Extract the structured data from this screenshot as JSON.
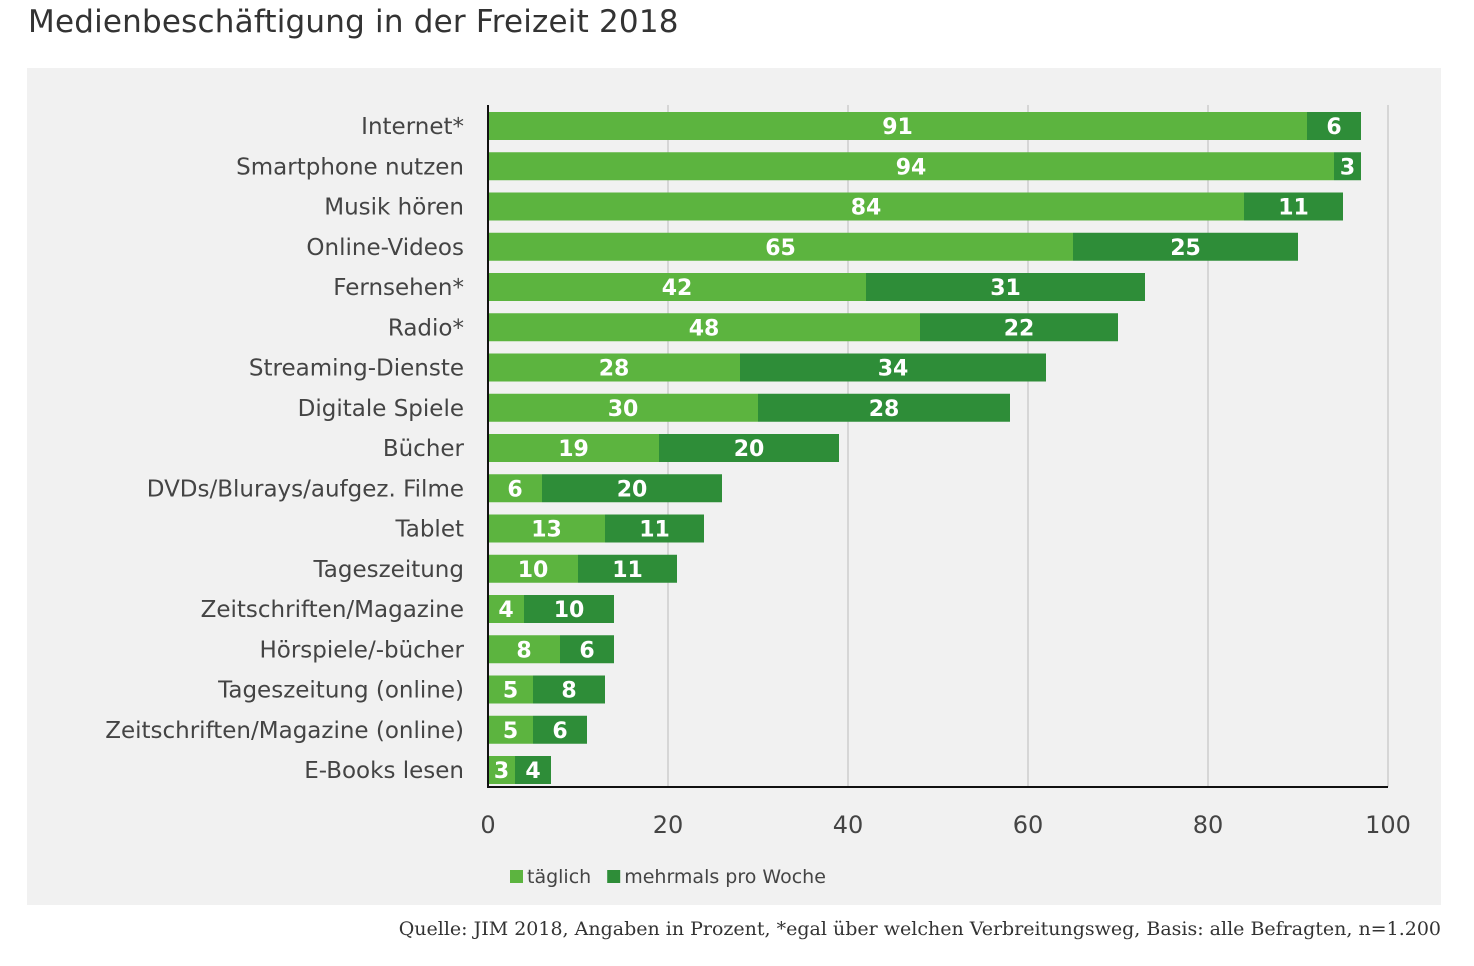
{
  "title": "Medienbeschäftigung in der Freizeit 2018",
  "source": "Quelle: JIM 2018, Angaben in Prozent, *egal über welchen Verbreitungsweg, Basis: alle Befragten, n=1.200",
  "colors": {
    "täglich": "#5cb43f",
    "mehrmals pro Woche": "#2e8d38",
    "background": "#f1f1f1"
  },
  "chart_data": {
    "type": "bar",
    "orientation": "horizontal",
    "stacked": true,
    "categories": [
      "Internet*",
      "Smartphone nutzen",
      "Musik hören",
      "Online-Videos",
      "Fernsehen*",
      "Radio*",
      "Streaming-Dienste",
      "Digitale Spiele",
      "Bücher",
      "DVDs/Blurays/aufgez. Filme",
      "Tablet",
      "Tageszeitung",
      "Zeitschriften/Magazine",
      "Hörspiele/-bücher",
      "Tageszeitung (online)",
      "Zeitschriften/Magazine (online)",
      "E-Books lesen"
    ],
    "series": [
      {
        "name": "täglich",
        "values": [
          91,
          94,
          84,
          65,
          42,
          48,
          28,
          30,
          19,
          6,
          13,
          10,
          4,
          8,
          5,
          5,
          3
        ]
      },
      {
        "name": "mehrmals pro Woche",
        "values": [
          6,
          3,
          11,
          25,
          31,
          22,
          34,
          28,
          20,
          20,
          11,
          11,
          10,
          6,
          8,
          6,
          4
        ]
      }
    ],
    "xlim": [
      0,
      100
    ],
    "xticks": [
      0,
      20,
      40,
      60,
      80,
      100
    ],
    "grid": true,
    "legend": "bottom",
    "data_labels": true
  }
}
